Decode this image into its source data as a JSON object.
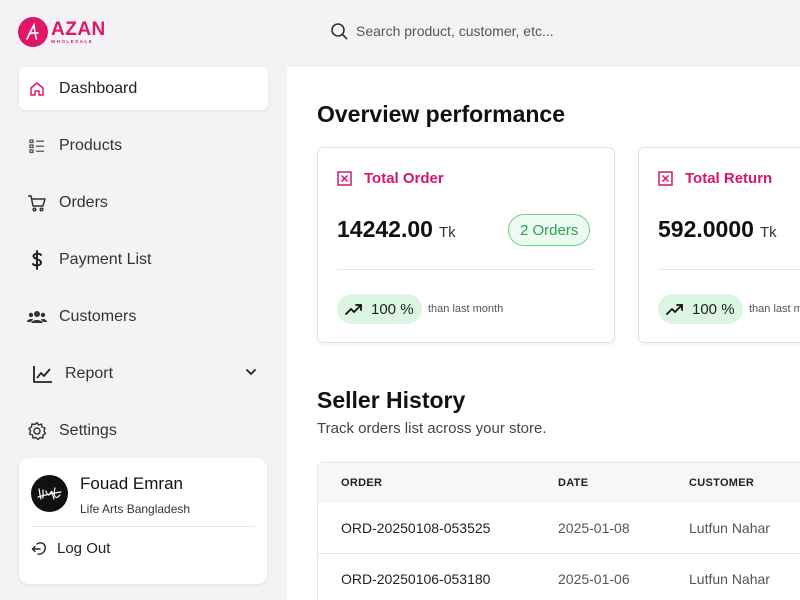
{
  "brand": {
    "name": "AZAN",
    "sub": "WHOLESALE",
    "color": "#e0166b"
  },
  "search": {
    "placeholder": "Search product, customer, etc..."
  },
  "nav": [
    {
      "label": "Dashboard",
      "icon": "home-icon",
      "active": true
    },
    {
      "label": "Products",
      "icon": "list-icon"
    },
    {
      "label": "Orders",
      "icon": "cart-icon"
    },
    {
      "label": "Payment List",
      "icon": "dollar-icon"
    },
    {
      "label": "Customers",
      "icon": "users-icon"
    },
    {
      "label": "Report",
      "icon": "chart-line-icon",
      "expandable": true
    },
    {
      "label": "Settings",
      "icon": "gear-icon"
    }
  ],
  "user": {
    "name": "Fouad Emran",
    "org": "Life Arts Bangladesh",
    "logout": "Log Out"
  },
  "overview": {
    "title": "Overview performance",
    "cards": [
      {
        "label": "Total Order",
        "value": "14242.00",
        "unit": "Tk",
        "badge": "2 Orders",
        "trend": "100 %",
        "trend_note": "than last month"
      },
      {
        "label": "Total Return",
        "value": "592.0000",
        "unit": "Tk",
        "trend": "100 %",
        "trend_note": "than last m"
      }
    ]
  },
  "seller_history": {
    "title": "Seller History",
    "subtitle": "Track orders list across your store.",
    "columns": [
      "ORDER",
      "DATE",
      "CUSTOMER"
    ],
    "rows": [
      {
        "order": "ORD-20250108-053525",
        "date": "2025-01-08",
        "customer": "Lutfun Nahar"
      },
      {
        "order": "ORD-20250106-053180",
        "date": "2025-01-06",
        "customer": "Lutfun Nahar"
      }
    ]
  },
  "colors": {
    "accent": "#d6166b",
    "success": "#2aa152",
    "success_bg": "#dcf5e3"
  }
}
